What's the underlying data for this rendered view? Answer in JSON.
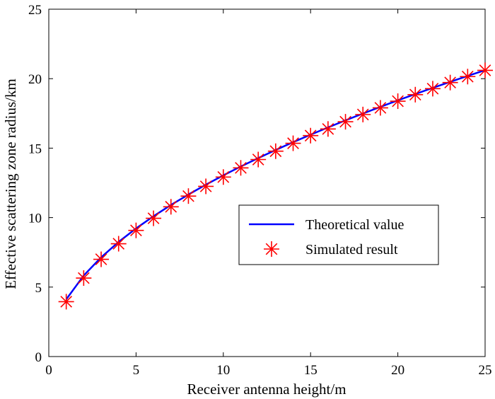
{
  "chart_data": {
    "type": "line",
    "title": "",
    "xlabel": "Receiver antenna height/m",
    "ylabel": "Effective scattering zone radius/km",
    "xlim": [
      0,
      25
    ],
    "ylim": [
      0,
      25
    ],
    "xticks": [
      "0",
      "5",
      "10",
      "15",
      "20",
      "25"
    ],
    "yticks": [
      "0",
      "5",
      "10",
      "15",
      "20",
      "25"
    ],
    "grid": false,
    "legend_position": "center-right",
    "series": [
      {
        "name": "Theoretical value",
        "style": "line",
        "color": "#0000ff",
        "x": [
          1,
          2,
          3,
          4,
          5,
          6,
          7,
          8,
          9,
          10,
          11,
          12,
          13,
          14,
          15,
          16,
          17,
          18,
          19,
          20,
          21,
          22,
          23,
          24,
          25
        ],
        "y": [
          4.12,
          5.83,
          7.14,
          8.25,
          9.22,
          10.1,
          10.91,
          11.66,
          12.37,
          13.04,
          13.68,
          14.28,
          14.87,
          15.43,
          15.97,
          16.49,
          17.0,
          17.49,
          17.97,
          18.44,
          18.89,
          19.34,
          19.77,
          20.2,
          20.61
        ]
      },
      {
        "name": "Simulated result",
        "style": "marker",
        "marker": "asterisk",
        "color": "#ff0000",
        "x": [
          1,
          2,
          3,
          4,
          5,
          6,
          7,
          8,
          9,
          10,
          11,
          12,
          13,
          14,
          15,
          16,
          17,
          18,
          19,
          20,
          21,
          22,
          23,
          24,
          25
        ],
        "y": [
          3.95,
          5.65,
          7.0,
          8.12,
          9.08,
          9.95,
          10.78,
          11.55,
          12.25,
          12.92,
          13.58,
          14.18,
          14.78,
          15.35,
          15.9,
          16.38,
          16.9,
          17.42,
          17.9,
          18.38,
          18.85,
          19.28,
          19.72,
          20.15,
          20.6
        ]
      }
    ]
  }
}
